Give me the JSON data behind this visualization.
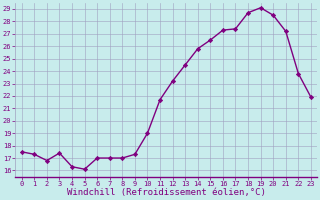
{
  "x": [
    0,
    1,
    2,
    3,
    4,
    5,
    6,
    7,
    8,
    9,
    10,
    11,
    12,
    13,
    14,
    15,
    16,
    17,
    18,
    19,
    20,
    21,
    22,
    23
  ],
  "y": [
    17.5,
    17.3,
    16.8,
    17.4,
    16.3,
    16.1,
    17.0,
    17.0,
    17.0,
    17.3,
    19.0,
    21.7,
    23.2,
    24.5,
    25.8,
    26.5,
    27.3,
    27.4,
    28.7,
    29.1,
    28.5,
    27.2,
    23.8,
    21.9
  ],
  "line_color": "#800080",
  "marker": "D",
  "marker_size": 2.2,
  "bg_color": "#c8ecec",
  "grid_color": "#a0a0c0",
  "xlabel": "Windchill (Refroidissement éolien,°C)",
  "xlim": [
    -0.5,
    23.5
  ],
  "ylim": [
    15.5,
    29.5
  ],
  "yticks": [
    16,
    17,
    18,
    19,
    20,
    21,
    22,
    23,
    24,
    25,
    26,
    27,
    28,
    29
  ],
  "xticks": [
    0,
    1,
    2,
    3,
    4,
    5,
    6,
    7,
    8,
    9,
    10,
    11,
    12,
    13,
    14,
    15,
    16,
    17,
    18,
    19,
    20,
    21,
    22,
    23
  ],
  "tick_color": "#800080",
  "tick_fontsize": 5.0,
  "xlabel_fontsize": 6.5,
  "line_width": 1.0,
  "figure_width": 3.2,
  "figure_height": 2.0,
  "dpi": 100
}
